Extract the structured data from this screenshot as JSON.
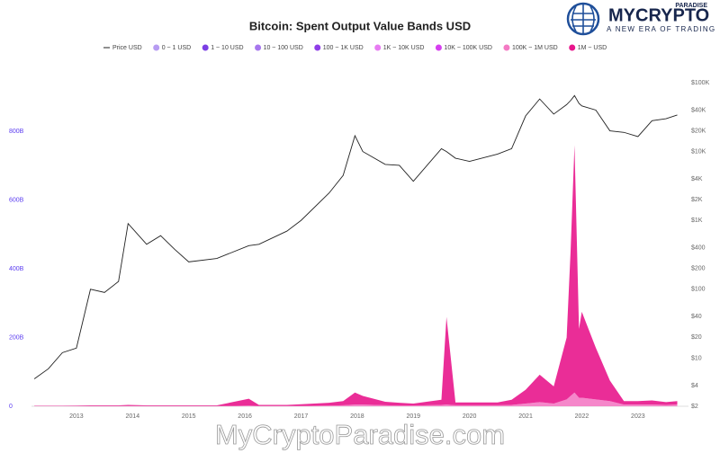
{
  "brand": {
    "name": "MYCRYPTO",
    "sub": "PARADISE",
    "tagline": "A NEW ERA OF TRADING",
    "watermark": "MyCryptoParadise.com"
  },
  "chart_data": {
    "type": "stacked-area-price",
    "title": "Bitcoin: Spent Output Value Bands USD",
    "x": [
      2012.25,
      2012.5,
      2012.75,
      2013.0,
      2013.25,
      2013.5,
      2013.75,
      2013.92,
      2014.25,
      2014.5,
      2014.75,
      2015.0,
      2015.5,
      2016.07,
      2016.25,
      2016.75,
      2017.0,
      2017.5,
      2017.75,
      2017.96,
      2018.1,
      2018.5,
      2018.75,
      2019.0,
      2019.5,
      2019.59,
      2019.75,
      2020.0,
      2020.5,
      2020.75,
      2021.0,
      2021.25,
      2021.5,
      2021.73,
      2021.8,
      2021.87,
      2021.95,
      2022.0,
      2022.25,
      2022.5,
      2022.75,
      2023.0,
      2023.25,
      2023.5,
      2023.7
    ],
    "series": [
      {
        "name": "Price USD",
        "color": "#222222",
        "axis": "y2",
        "values": [
          5,
          7,
          12,
          14,
          100,
          90,
          130,
          900,
          450,
          600,
          380,
          250,
          280,
          430,
          450,
          700,
          1000,
          2500,
          4500,
          17000,
          10000,
          6500,
          6300,
          3700,
          11000,
          10000,
          8000,
          7200,
          9200,
          11000,
          33000,
          58000,
          35000,
          48000,
          55000,
          65000,
          50000,
          46000,
          40000,
          20000,
          19000,
          16500,
          28000,
          30000,
          34000
        ]
      },
      {
        "name": "0 ~ 1 USD",
        "color": "#b79cf2"
      },
      {
        "name": "1 ~ 10 USD",
        "color": "#7b3fe4"
      },
      {
        "name": "10 ~ 100 USD",
        "color": "#a777ee"
      },
      {
        "name": "100 ~ 1K USD",
        "color": "#8f3ee8"
      },
      {
        "name": "1K ~ 10K USD",
        "color": "#e77cf2"
      },
      {
        "name": "10K ~ 100K USD",
        "color": "#d63ef0"
      },
      {
        "name": "100K ~ 1M USD",
        "color": "#f47ac4",
        "values": [
          0.5,
          0.5,
          0.5,
          0.5,
          0.5,
          0.5,
          0.5,
          1,
          0.5,
          0.5,
          0.5,
          0.5,
          0.5,
          2,
          1,
          1,
          1,
          2,
          3,
          5,
          5,
          3,
          2,
          2,
          4,
          5,
          3,
          3,
          3,
          4,
          8,
          12,
          8,
          20,
          30,
          40,
          25,
          25,
          20,
          15,
          5,
          5,
          5,
          4,
          5
        ]
      },
      {
        "name": "1M ~ USD",
        "color": "#e8168c",
        "values": [
          1,
          1,
          1,
          1.5,
          2,
          2,
          2,
          3,
          2,
          2,
          2,
          2,
          2,
          20,
          3,
          3,
          5,
          8,
          12,
          35,
          25,
          10,
          8,
          6,
          15,
          255,
          8,
          8,
          8,
          15,
          40,
          80,
          50,
          180,
          420,
          720,
          200,
          250,
          150,
          60,
          10,
          10,
          12,
          8,
          10
        ]
      }
    ],
    "xlim": [
      2012.2,
      2023.9
    ],
    "xticks": [
      2013,
      2014,
      2015,
      2016,
      2017,
      2018,
      2019,
      2020,
      2021,
      2022,
      2023
    ],
    "ylim": [
      0,
      942
    ],
    "yticks": [
      0,
      {
        "value": 200,
        "label": "200B"
      },
      {
        "value": 400,
        "label": "400B"
      },
      {
        "value": 600,
        "label": "600B"
      },
      {
        "value": 800,
        "label": "800B"
      }
    ],
    "y2log": true,
    "y2lim": [
      2,
      100000
    ],
    "y2ticks": [
      {
        "value": 2,
        "label": "$2"
      },
      {
        "value": 4,
        "label": "$4"
      },
      {
        "value": 10,
        "label": "$10"
      },
      {
        "value": 20,
        "label": "$20"
      },
      {
        "value": 40,
        "label": "$40"
      },
      {
        "value": 100,
        "label": "$100"
      },
      {
        "value": 200,
        "label": "$200"
      },
      {
        "value": 400,
        "label": "$400"
      },
      {
        "value": 1000,
        "label": "$1K"
      },
      {
        "value": 2000,
        "label": "$2K"
      },
      {
        "value": 4000,
        "label": "$4K"
      },
      {
        "value": 10000,
        "label": "$10K"
      },
      {
        "value": 20000,
        "label": "$20K"
      },
      {
        "value": 40000,
        "label": "$40K"
      },
      {
        "value": 100000,
        "label": "$100K"
      }
    ]
  }
}
